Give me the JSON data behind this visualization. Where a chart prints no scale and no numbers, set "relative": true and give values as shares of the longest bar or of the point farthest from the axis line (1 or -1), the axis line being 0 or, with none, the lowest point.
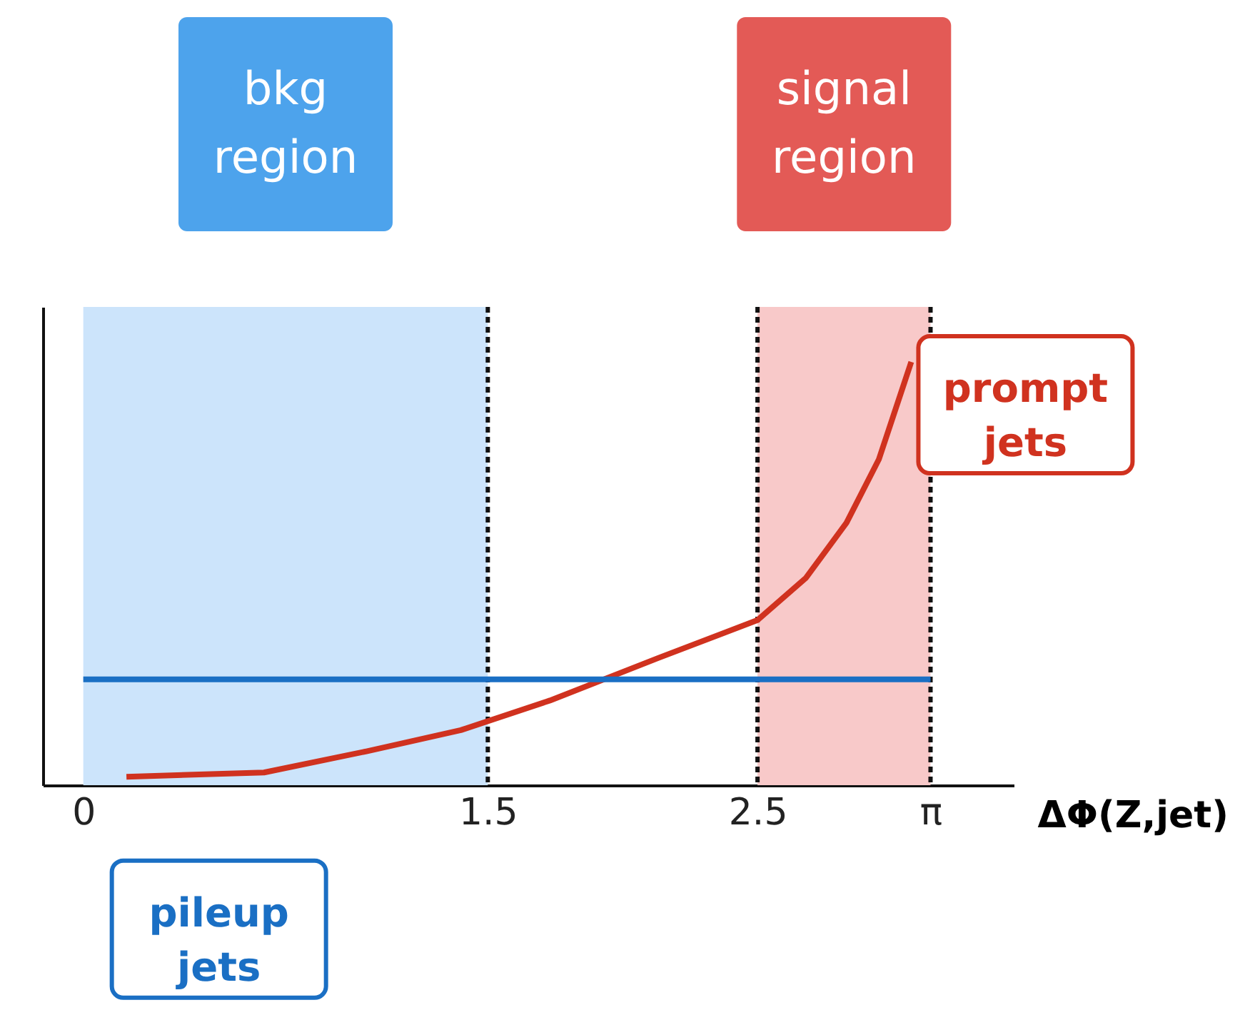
{
  "chart_data": {
    "type": "line",
    "relative": true,
    "xlabel": "ΔΦ(Z,jet)",
    "xlim": [
      -0.15,
      3.45
    ],
    "xticks": [
      0,
      1.5,
      2.5,
      {
        "value": 3.14159,
        "label": "π"
      }
    ],
    "series": [
      {
        "name": "prompt jets",
        "color": "#d0321f",
        "x": [
          0.16,
          0.67,
          1.05,
          1.4,
          1.73,
          2.13,
          2.5,
          2.68,
          2.83,
          2.95,
          3.07
        ],
        "values": [
          0.02,
          0.03,
          0.08,
          0.13,
          0.2,
          0.3,
          0.39,
          0.49,
          0.62,
          0.77,
          1
        ]
      },
      {
        "name": "pileup jets",
        "color": "#1a6fc4",
        "x": [
          0,
          3.14159
        ],
        "values": [
          0.25,
          0.25
        ]
      }
    ],
    "bands": [
      {
        "axis": "x",
        "from": 0,
        "to": 1.5,
        "label": "bkg region",
        "color": "#cce4fb"
      },
      {
        "axis": "x",
        "from": 2.5,
        "to": 3.14159,
        "label": "signal region",
        "color": "#f8c9c9"
      }
    ],
    "ref_lines": [
      {
        "axis": "x",
        "value": 1.5,
        "color": "#111111",
        "line_style": "dashed"
      },
      {
        "axis": "x",
        "value": 2.5,
        "color": "#111111",
        "line_style": "dashed"
      },
      {
        "axis": "x",
        "value": 3.14159,
        "color": "#111111",
        "line_style": "dashed"
      }
    ]
  }
}
